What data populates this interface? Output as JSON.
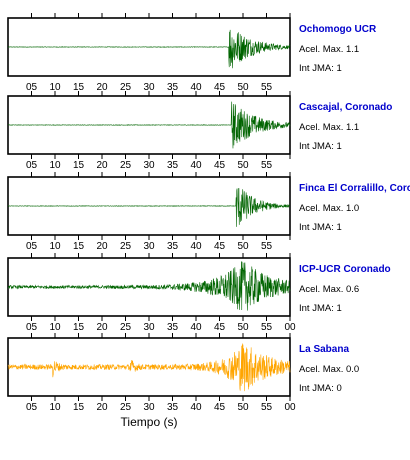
{
  "chart_data": {
    "type": "line",
    "xlabel": "Tiempo (s)",
    "xlim": [
      0,
      60
    ],
    "tick_labels_no_trailing": [
      "05",
      "10",
      "15",
      "20",
      "25",
      "30",
      "35",
      "40",
      "45",
      "50",
      "55"
    ],
    "tick_labels_with_end": [
      "05",
      "10",
      "15",
      "20",
      "25",
      "30",
      "35",
      "40",
      "45",
      "50",
      "55",
      "00"
    ],
    "panels": [
      {
        "station": "Ochomogo UCR",
        "acel_text": "Acel. Max. 1.1",
        "jma_text": "Int JMA: 1",
        "color": "#006400",
        "top_ticks_only": true,
        "tick_labels": "tick_labels_no_trailing",
        "events": [
          {
            "t": 47,
            "amp": 1.0,
            "decay": 4.5
          }
        ],
        "noise": 0.01
      },
      {
        "station": "Cascajal, Coronado",
        "acel_text": "Acel. Max. 1.1",
        "jma_text": "Int JMA: 1",
        "color": "#006400",
        "top_ticks_only": false,
        "tick_labels": "tick_labels_no_trailing",
        "events": [
          {
            "t": 47.5,
            "amp": 1.0,
            "decay": 5.0
          }
        ],
        "noise": 0.01
      },
      {
        "station": "Finca El Corralillo, Coronado",
        "acel_text": "Acel. Max. 1.0",
        "jma_text": "Int JMA: 1",
        "color": "#006400",
        "top_ticks_only": false,
        "tick_labels": "tick_labels_no_trailing",
        "events": [
          {
            "t": 48.5,
            "amp": 1.0,
            "decay": 3.5
          }
        ],
        "noise": 0.01
      },
      {
        "station": "ICP-UCR Coronado",
        "acel_text": "Acel. Max. 0.6",
        "jma_text": "Int JMA: 1",
        "color": "#006400",
        "top_ticks_only": false,
        "tick_labels": "tick_labels_with_end",
        "events": [
          {
            "t": 50,
            "amp": 1.0,
            "decay": 6.0,
            "rise": 5
          }
        ],
        "noise": 0.06
      },
      {
        "station": "La Sabana",
        "acel_text": "Acel. Max. 0.0",
        "jma_text": "Int JMA: 0",
        "color": "#ffa500",
        "top_ticks_only": false,
        "tick_labels": "tick_labels_with_end",
        "events": [
          {
            "t": 9.5,
            "amp": 0.35,
            "decay": 0.8
          },
          {
            "t": 26,
            "amp": 0.3,
            "decay": 0.8
          },
          {
            "t": 50,
            "amp": 1.0,
            "decay": 5.0,
            "rise": 3
          }
        ],
        "noise": 0.1
      }
    ]
  }
}
